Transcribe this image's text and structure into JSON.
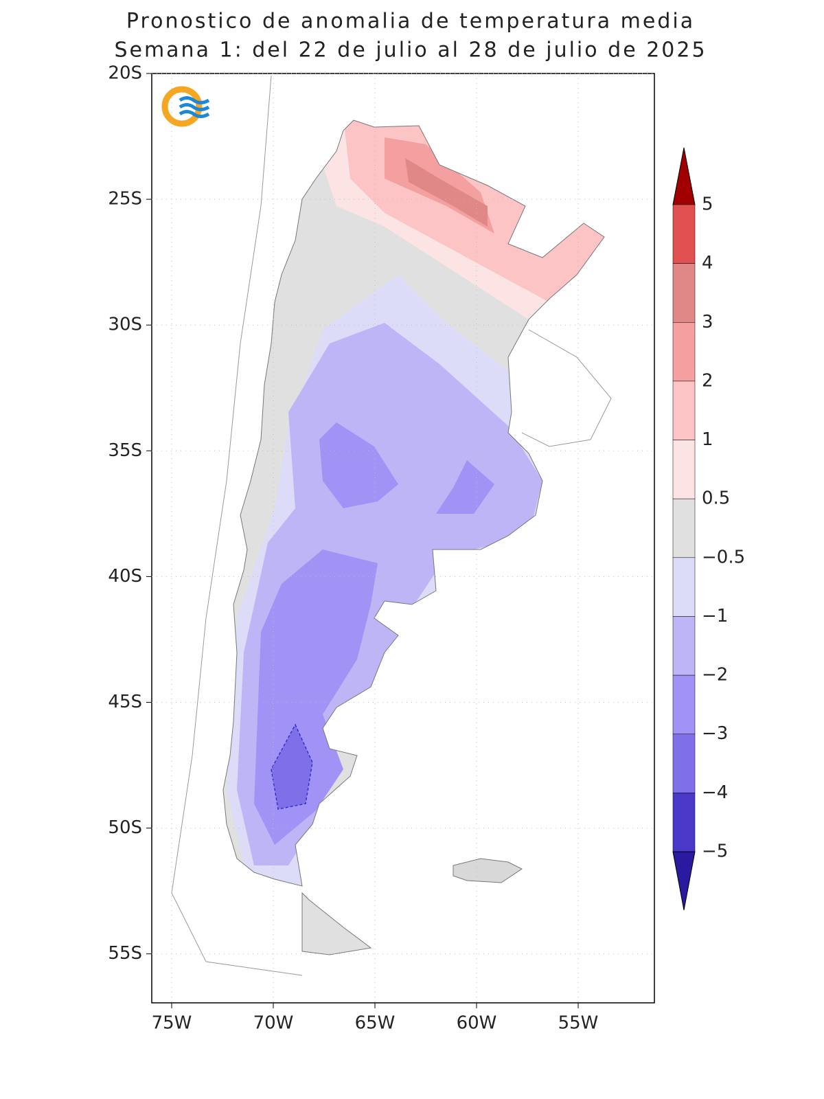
{
  "header": {
    "title": "Pronostico de anomalia de temperatura media",
    "subtitle": "Semana 1: del 22 de julio al 28 de julio de 2025"
  },
  "map": {
    "lat_labels": [
      "20S",
      "25S",
      "30S",
      "35S",
      "40S",
      "45S",
      "50S",
      "55S"
    ],
    "lon_labels": [
      "75W",
      "70W",
      "65W",
      "60W",
      "55W"
    ]
  },
  "colorbar": {
    "labels": [
      "5",
      "4",
      "3",
      "2",
      "1",
      "0.5",
      "−0.5",
      "−1",
      "−2",
      "−3",
      "−4",
      "−5"
    ],
    "colors": [
      "#a00000",
      "#e05050",
      "#e08888",
      "#f5a0a0",
      "#fcc4c4",
      "#fde4e4",
      "#e0e0e0",
      "#dcdcf8",
      "#bdb5f5",
      "#a093f5",
      "#8070e8",
      "#4a38c8",
      "#2a1aa0"
    ]
  }
}
